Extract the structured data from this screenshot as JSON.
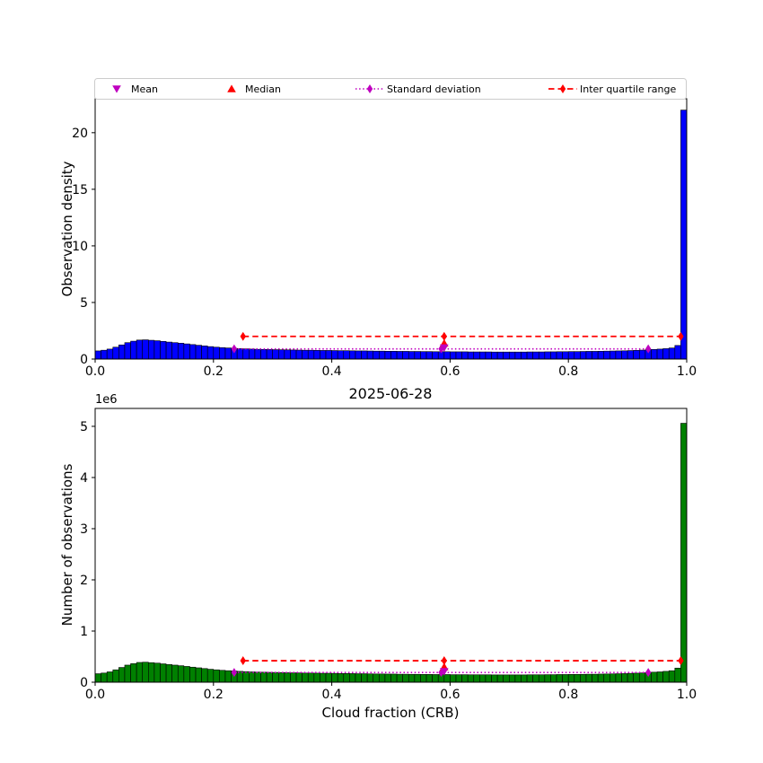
{
  "figure": {
    "background": "#ffffff",
    "date_title": "2025-06-28"
  },
  "colors": {
    "top_hist": "#0000ff",
    "bottom_hist": "#008000",
    "mean": "#bf00bf",
    "median": "#ff0000",
    "std": "#bf00bf",
    "iqr": "#ff0000"
  },
  "legend": {
    "entries": [
      {
        "label": "Mean",
        "glyph": "triangle-down",
        "color": "#bf00bf",
        "line": "none"
      },
      {
        "label": "Median",
        "glyph": "triangle-up",
        "color": "#ff0000",
        "line": "none"
      },
      {
        "label": "Standard deviation",
        "glyph": "diamond",
        "color": "#bf00bf",
        "line": "dotted"
      },
      {
        "label": "Inter quartile range",
        "glyph": "diamond",
        "color": "#ff0000",
        "line": "dashed"
      }
    ]
  },
  "chart_data": [
    {
      "type": "bar",
      "subtype": "histogram",
      "title": "",
      "xlabel": "",
      "ylabel": "Observation density",
      "bar_color": "#0000ff",
      "xlim": [
        0.0,
        1.0
      ],
      "ylim": [
        0,
        23
      ],
      "xticks": [
        0.0,
        0.2,
        0.4,
        0.6,
        0.8,
        1.0
      ],
      "xtick_labels": [
        "0.0",
        "0.2",
        "0.4",
        "0.6",
        "0.8",
        "1.0"
      ],
      "yticks": [
        0,
        5,
        10,
        15,
        20
      ],
      "ytick_labels": [
        "0",
        "5",
        "10",
        "15",
        "20"
      ],
      "grid": false,
      "bin_start": 0.0,
      "bin_width": 0.01,
      "values": [
        0.72,
        0.78,
        0.88,
        1.05,
        1.25,
        1.45,
        1.58,
        1.68,
        1.7,
        1.66,
        1.62,
        1.56,
        1.5,
        1.45,
        1.4,
        1.34,
        1.28,
        1.22,
        1.16,
        1.1,
        1.05,
        1.01,
        0.98,
        0.95,
        0.92,
        0.9,
        0.88,
        0.86,
        0.85,
        0.84,
        0.83,
        0.82,
        0.81,
        0.8,
        0.79,
        0.78,
        0.78,
        0.77,
        0.76,
        0.76,
        0.75,
        0.74,
        0.74,
        0.73,
        0.72,
        0.72,
        0.71,
        0.7,
        0.7,
        0.69,
        0.69,
        0.68,
        0.68,
        0.67,
        0.67,
        0.66,
        0.66,
        0.65,
        0.65,
        0.65,
        0.64,
        0.64,
        0.64,
        0.63,
        0.63,
        0.63,
        0.63,
        0.62,
        0.62,
        0.62,
        0.62,
        0.62,
        0.62,
        0.63,
        0.63,
        0.63,
        0.64,
        0.64,
        0.65,
        0.65,
        0.66,
        0.66,
        0.67,
        0.68,
        0.68,
        0.69,
        0.7,
        0.71,
        0.72,
        0.73,
        0.75,
        0.77,
        0.79,
        0.82,
        0.85,
        0.88,
        0.92,
        0.98,
        1.2,
        22.0
      ],
      "markers": {
        "mean": {
          "x": 0.59,
          "y": 1.0
        },
        "median": {
          "x": 0.59,
          "y": 1.4
        },
        "std": {
          "x_low": 0.235,
          "x_center": 0.585,
          "x_high": 0.935,
          "y": 0.9
        },
        "iqr": {
          "x_low": 0.25,
          "x_center": 0.59,
          "x_high": 0.99,
          "y": 2.0
        }
      }
    },
    {
      "type": "bar",
      "subtype": "histogram",
      "title": "2025-06-28",
      "xlabel": "Cloud fraction (CRB)",
      "ylabel": "Number of observations",
      "y_offset_label": "1e6",
      "y_unit": 1000000,
      "bar_color": "#008000",
      "xlim": [
        0.0,
        1.0
      ],
      "ylim": [
        0,
        5.35
      ],
      "xticks": [
        0.0,
        0.2,
        0.4,
        0.6,
        0.8,
        1.0
      ],
      "xtick_labels": [
        "0.0",
        "0.2",
        "0.4",
        "0.6",
        "0.8",
        "1.0"
      ],
      "yticks": [
        0,
        1,
        2,
        3,
        4,
        5
      ],
      "ytick_labels": [
        "0",
        "1",
        "2",
        "3",
        "4",
        "5"
      ],
      "grid": false,
      "bin_start": 0.0,
      "bin_width": 0.01,
      "values": [
        0.166,
        0.179,
        0.202,
        0.242,
        0.288,
        0.334,
        0.363,
        0.386,
        0.391,
        0.382,
        0.373,
        0.359,
        0.345,
        0.334,
        0.322,
        0.308,
        0.294,
        0.281,
        0.267,
        0.253,
        0.242,
        0.232,
        0.225,
        0.219,
        0.212,
        0.207,
        0.202,
        0.198,
        0.196,
        0.193,
        0.191,
        0.189,
        0.186,
        0.184,
        0.182,
        0.179,
        0.179,
        0.177,
        0.175,
        0.175,
        0.173,
        0.17,
        0.17,
        0.168,
        0.166,
        0.166,
        0.163,
        0.161,
        0.161,
        0.159,
        0.159,
        0.156,
        0.156,
        0.154,
        0.154,
        0.152,
        0.152,
        0.15,
        0.15,
        0.15,
        0.147,
        0.147,
        0.147,
        0.145,
        0.145,
        0.145,
        0.145,
        0.143,
        0.143,
        0.143,
        0.143,
        0.143,
        0.143,
        0.145,
        0.145,
        0.145,
        0.147,
        0.147,
        0.15,
        0.15,
        0.152,
        0.152,
        0.154,
        0.156,
        0.156,
        0.159,
        0.161,
        0.163,
        0.166,
        0.168,
        0.173,
        0.177,
        0.182,
        0.189,
        0.196,
        0.202,
        0.212,
        0.225,
        0.276,
        5.06
      ],
      "markers": {
        "mean": {
          "x": 0.59,
          "y": 0.21
        },
        "median": {
          "x": 0.59,
          "y": 0.3
        },
        "std": {
          "x_low": 0.235,
          "x_center": 0.585,
          "x_high": 0.935,
          "y": 0.19
        },
        "iqr": {
          "x_low": 0.25,
          "x_center": 0.59,
          "x_high": 0.99,
          "y": 0.42
        }
      }
    }
  ]
}
